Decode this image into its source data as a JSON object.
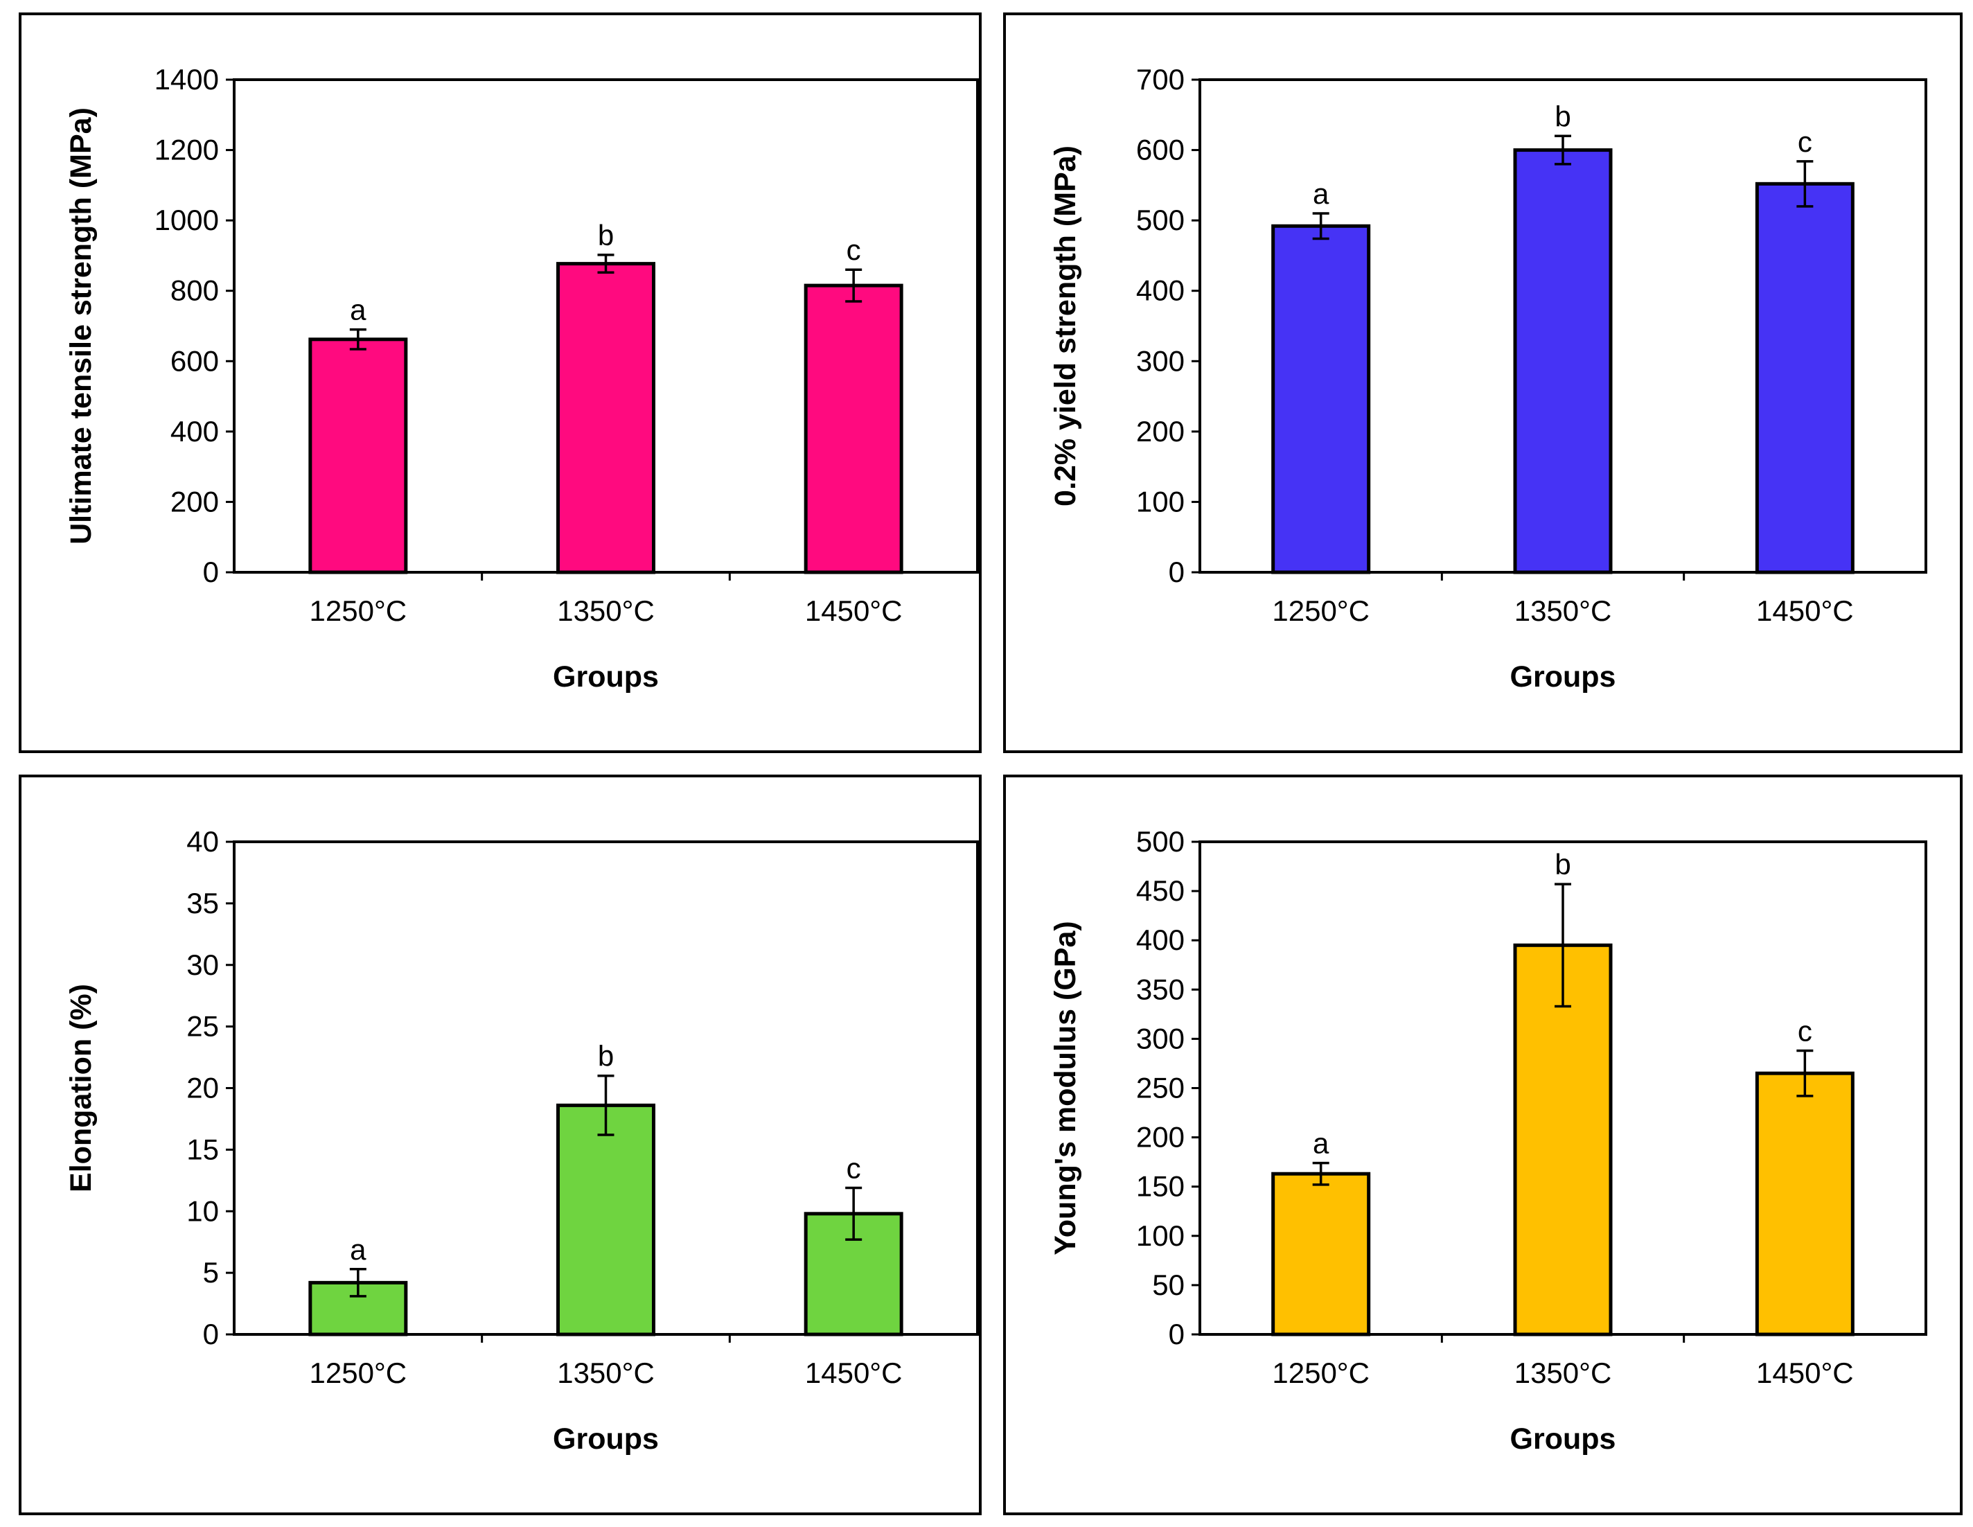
{
  "chart_data": [
    {
      "type": "bar",
      "categories": [
        "1250°C",
        "1350°C",
        "1450°C"
      ],
      "values": [
        662,
        877,
        815
      ],
      "errors": [
        28,
        25,
        45
      ],
      "letters": [
        "a",
        "b",
        "c"
      ],
      "xlabel": "Groups",
      "ylabel": "Ultimate tensile strength (MPa)",
      "ylim": [
        0,
        1400
      ],
      "yticks": [
        0,
        200,
        400,
        600,
        800,
        1000,
        1200,
        1400
      ],
      "color": "#FF0A7F"
    },
    {
      "type": "bar",
      "categories": [
        "1250°C",
        "1350°C",
        "1450°C"
      ],
      "values": [
        492,
        600,
        552
      ],
      "errors": [
        18,
        20,
        32
      ],
      "letters": [
        "a",
        "b",
        "c"
      ],
      "xlabel": "Groups",
      "ylabel": "0.2% yield strength (MPa)",
      "ylim": [
        0,
        700
      ],
      "yticks": [
        0,
        100,
        200,
        300,
        400,
        500,
        600,
        700
      ],
      "color": "#4633F5"
    },
    {
      "type": "bar",
      "categories": [
        "1250°C",
        "1350°C",
        "1450°C"
      ],
      "values": [
        4.2,
        18.6,
        9.8
      ],
      "errors": [
        1.1,
        2.4,
        2.1
      ],
      "letters": [
        "a",
        "b",
        "c"
      ],
      "xlabel": "Groups",
      "ylabel": "Elongation (%)",
      "ylim": [
        0,
        40
      ],
      "yticks": [
        0,
        5,
        10,
        15,
        20,
        25,
        30,
        35,
        40
      ],
      "color": "#6FD440"
    },
    {
      "type": "bar",
      "categories": [
        "1250°C",
        "1350°C",
        "1450°C"
      ],
      "values": [
        163,
        395,
        265
      ],
      "errors": [
        11,
        62,
        23
      ],
      "letters": [
        "a",
        "b",
        "c"
      ],
      "xlabel": "Groups",
      "ylabel": "Young's modulus (GPa)",
      "ylim": [
        0,
        500
      ],
      "yticks": [
        0,
        50,
        100,
        150,
        200,
        250,
        300,
        350,
        400,
        450,
        500
      ],
      "color": "#FFC000"
    }
  ]
}
